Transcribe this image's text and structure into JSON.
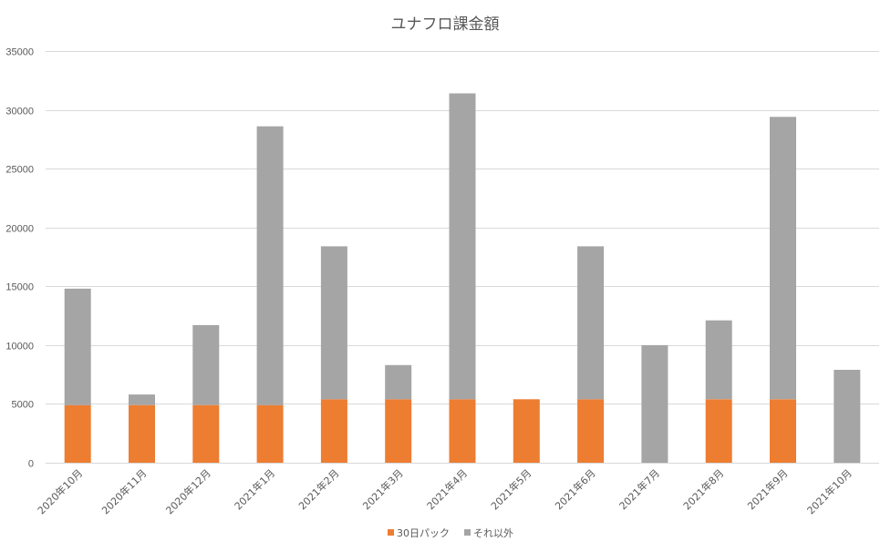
{
  "chart_data": {
    "type": "bar",
    "stacked": true,
    "title": "ユナフロ課金額",
    "xlabel": "",
    "ylabel": "",
    "ylim": [
      0,
      35000
    ],
    "yticks": [
      "0",
      "5000",
      "10000",
      "15000",
      "20000",
      "25000",
      "30000",
      "35000"
    ],
    "grid": true,
    "legend_position": "bottom",
    "categories": [
      "2020年10月",
      "2020年11月",
      "2020年12月",
      "2021年1月",
      "2021年2月",
      "2021年3月",
      "2021年4月",
      "2021年5月",
      "2021年6月",
      "2021年7月",
      "2021年8月",
      "2021年9月",
      "2021年10月"
    ],
    "series": [
      {
        "name": "30日パック",
        "color": "#ed7d31",
        "values": [
          4900,
          4900,
          4900,
          4900,
          5400,
          5400,
          5400,
          5400,
          5400,
          0,
          5400,
          5400,
          0
        ]
      },
      {
        "name": "それ以外",
        "color": "#a5a5a5",
        "values": [
          9900,
          900,
          6800,
          23700,
          13000,
          2900,
          26000,
          0,
          13000,
          10000,
          6700,
          24000,
          7900
        ]
      }
    ]
  }
}
